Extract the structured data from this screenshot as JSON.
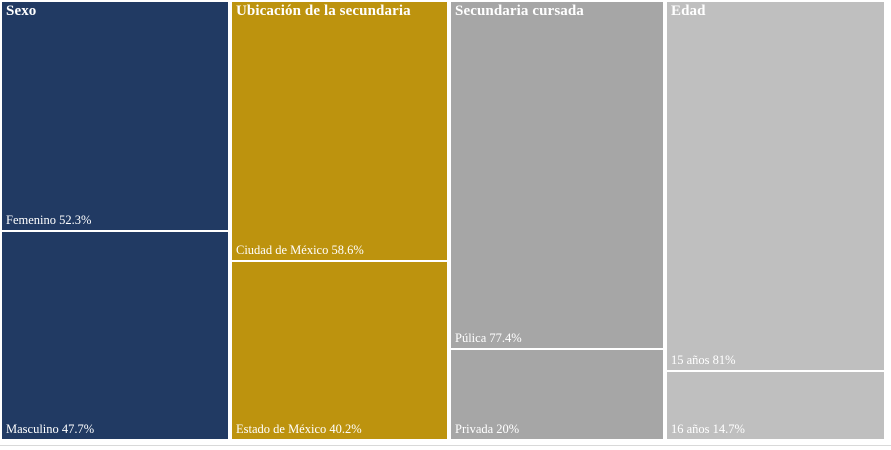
{
  "chart_data": {
    "type": "treemap",
    "orientation": "columns",
    "text_color": "#ffffff",
    "divider_color": "#ffffff",
    "columns": [
      {
        "title": "Sexo",
        "color": "#213A63",
        "segments": [
          {
            "label": "Femenino 52.3%",
            "category": "Femenino",
            "value": 52.3
          },
          {
            "label": "Masculino 47.7%",
            "category": "Masculino",
            "value": 47.7
          }
        ]
      },
      {
        "title": "Ubicación de la secundaria",
        "color": "#BD930E",
        "segments": [
          {
            "label": "Ciudad de México 58.6%",
            "category": "Ciudad de México",
            "value": 58.6
          },
          {
            "label": "Estado de México 40.2%",
            "category": "Estado de México",
            "value": 40.2
          }
        ]
      },
      {
        "title": "Secundaria cursada",
        "color": "#A6A6A6",
        "segments": [
          {
            "label": "Púlica 77.4%",
            "category": "Púlica",
            "value": 77.4
          },
          {
            "label": "Privada 20%",
            "category": "Privada",
            "value": 20
          }
        ]
      },
      {
        "title": "Edad",
        "color": "#BFBFBF",
        "segments": [
          {
            "label": "15 años 81%",
            "category": "15 años",
            "value": 81
          },
          {
            "label": "16 años 14.7%",
            "category": "16 años",
            "value": 14.7
          }
        ]
      }
    ]
  }
}
